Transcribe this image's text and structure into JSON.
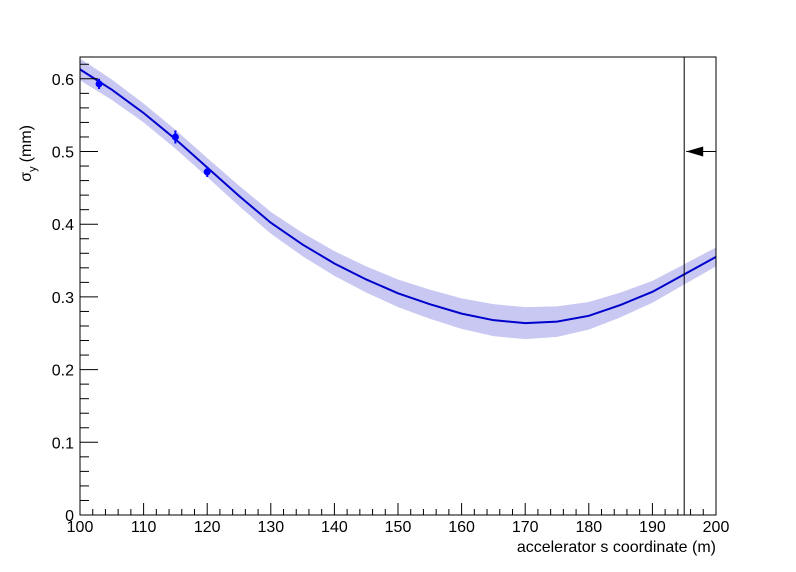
{
  "chart_data": {
    "type": "scatter",
    "xlabel": "accelerator s coordinate (m)",
    "ylabel": {
      "symbol": "σ",
      "subscript": "y",
      "unit": "(mm)"
    },
    "xlim": [
      100,
      200
    ],
    "ylim": [
      0,
      0.63
    ],
    "xticks": [
      100,
      110,
      120,
      130,
      140,
      150,
      160,
      170,
      180,
      190,
      200
    ],
    "yticks": [
      0,
      0.1,
      0.2,
      0.3,
      0.4,
      0.5,
      0.6
    ],
    "points": {
      "color": "#0000ff",
      "x": [
        103,
        115,
        120
      ],
      "values": [
        0.593,
        0.52,
        0.472
      ],
      "errors": [
        0.007,
        0.009,
        0.007
      ]
    },
    "fit": {
      "color": "#0000cc",
      "band_color": "#c8c8f2",
      "x": [
        100,
        105,
        110,
        115,
        120,
        125,
        130,
        135,
        140,
        145,
        150,
        155,
        160,
        165,
        170,
        175,
        180,
        185,
        190,
        195,
        200
      ],
      "values": [
        0.613,
        0.585,
        0.553,
        0.517,
        0.478,
        0.439,
        0.402,
        0.372,
        0.346,
        0.324,
        0.305,
        0.29,
        0.277,
        0.268,
        0.264,
        0.266,
        0.274,
        0.289,
        0.307,
        0.331,
        0.355
      ],
      "errors": [
        0.015,
        0.014,
        0.013,
        0.013,
        0.013,
        0.014,
        0.015,
        0.016,
        0.017,
        0.018,
        0.019,
        0.02,
        0.021,
        0.022,
        0.022,
        0.021,
        0.019,
        0.017,
        0.015,
        0.014,
        0.013
      ]
    },
    "cut_x": 195,
    "arrow_y": 0.5
  }
}
